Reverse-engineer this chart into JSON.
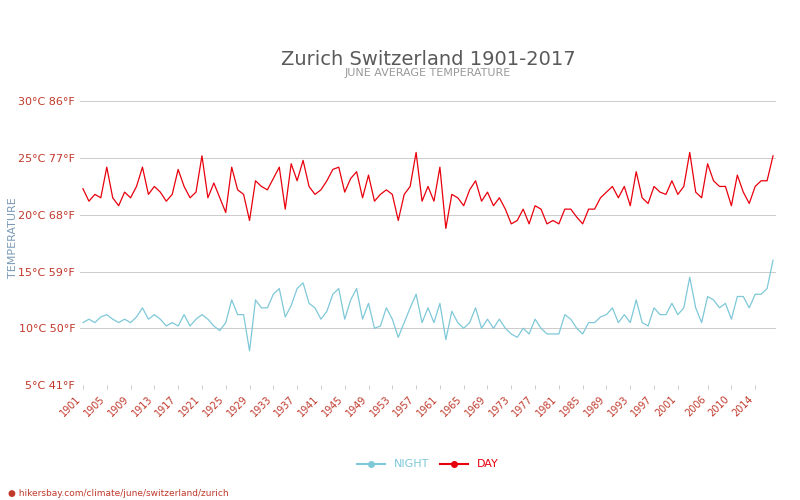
{
  "title": "Zurich Switzerland 1901-2017",
  "subtitle": "JUNE AVERAGE TEMPERATURE",
  "ylabel": "TEMPERATURE",
  "footer": "hikersbay.com/climate/june/switzerland/zurich",
  "years": [
    1901,
    1902,
    1903,
    1904,
    1905,
    1906,
    1907,
    1908,
    1909,
    1910,
    1911,
    1912,
    1913,
    1914,
    1915,
    1916,
    1917,
    1918,
    1919,
    1920,
    1921,
    1922,
    1923,
    1924,
    1925,
    1926,
    1927,
    1928,
    1929,
    1930,
    1931,
    1932,
    1933,
    1934,
    1935,
    1936,
    1937,
    1938,
    1939,
    1940,
    1941,
    1942,
    1943,
    1944,
    1945,
    1946,
    1947,
    1948,
    1949,
    1950,
    1951,
    1952,
    1953,
    1954,
    1955,
    1956,
    1957,
    1958,
    1959,
    1960,
    1961,
    1962,
    1963,
    1964,
    1965,
    1966,
    1967,
    1968,
    1969,
    1970,
    1971,
    1972,
    1973,
    1974,
    1975,
    1976,
    1977,
    1978,
    1979,
    1980,
    1981,
    1982,
    1983,
    1984,
    1985,
    1986,
    1987,
    1988,
    1989,
    1990,
    1991,
    1992,
    1993,
    1994,
    1995,
    1996,
    1997,
    1998,
    1999,
    2000,
    2001,
    2002,
    2003,
    2004,
    2005,
    2006,
    2007,
    2008,
    2009,
    2010,
    2011,
    2012,
    2013,
    2014,
    2015,
    2016,
    2017
  ],
  "day_temps": [
    22.3,
    21.2,
    21.8,
    21.5,
    24.2,
    21.5,
    20.8,
    22.0,
    21.5,
    22.5,
    24.2,
    21.8,
    22.5,
    22.0,
    21.2,
    21.8,
    24.0,
    22.5,
    21.5,
    22.0,
    25.2,
    21.5,
    22.8,
    21.5,
    20.2,
    24.2,
    22.2,
    21.8,
    19.5,
    23.0,
    22.5,
    22.2,
    23.2,
    24.2,
    20.5,
    24.5,
    23.0,
    24.8,
    22.5,
    21.8,
    22.2,
    23.0,
    24.0,
    24.2,
    22.0,
    23.2,
    23.8,
    21.5,
    23.5,
    21.2,
    21.8,
    22.2,
    21.8,
    19.5,
    21.8,
    22.5,
    25.5,
    21.2,
    22.5,
    21.2,
    24.2,
    18.8,
    21.8,
    21.5,
    20.8,
    22.2,
    23.0,
    21.2,
    22.0,
    20.8,
    21.5,
    20.5,
    19.2,
    19.5,
    20.5,
    19.2,
    20.8,
    20.5,
    19.2,
    19.5,
    19.2,
    20.5,
    20.5,
    19.8,
    19.2,
    20.5,
    20.5,
    21.5,
    22.0,
    22.5,
    21.5,
    22.5,
    20.8,
    23.8,
    21.5,
    21.0,
    22.5,
    22.0,
    21.8,
    23.0,
    21.8,
    22.5,
    25.5,
    22.0,
    21.5,
    24.5,
    23.0,
    22.5,
    22.5,
    20.8,
    23.5,
    22.0,
    21.0,
    22.5,
    23.0,
    23.0,
    25.2
  ],
  "night_temps": [
    10.5,
    10.8,
    10.5,
    11.0,
    11.2,
    10.8,
    10.5,
    10.8,
    10.5,
    11.0,
    11.8,
    10.8,
    11.2,
    10.8,
    10.2,
    10.5,
    10.2,
    11.2,
    10.2,
    10.8,
    11.2,
    10.8,
    10.2,
    9.8,
    10.5,
    12.5,
    11.2,
    11.2,
    8.0,
    12.5,
    11.8,
    11.8,
    13.0,
    13.5,
    11.0,
    12.0,
    13.5,
    14.0,
    12.2,
    11.8,
    10.8,
    11.5,
    13.0,
    13.5,
    10.8,
    12.5,
    13.5,
    10.8,
    12.2,
    10.0,
    10.2,
    11.8,
    10.8,
    9.2,
    10.5,
    11.8,
    13.0,
    10.5,
    11.8,
    10.5,
    12.2,
    9.0,
    11.5,
    10.5,
    10.0,
    10.5,
    11.8,
    10.0,
    10.8,
    10.0,
    10.8,
    10.0,
    9.5,
    9.2,
    10.0,
    9.5,
    10.8,
    10.0,
    9.5,
    9.5,
    9.5,
    11.2,
    10.8,
    10.0,
    9.5,
    10.5,
    10.5,
    11.0,
    11.2,
    11.8,
    10.5,
    11.2,
    10.5,
    12.5,
    10.5,
    10.2,
    11.8,
    11.2,
    11.2,
    12.2,
    11.2,
    11.8,
    14.5,
    11.8,
    10.5,
    12.8,
    12.5,
    11.8,
    12.2,
    10.8,
    12.8,
    12.8,
    11.8,
    13.0,
    13.0,
    13.5,
    16.0
  ],
  "xtick_years": [
    1901,
    1905,
    1909,
    1913,
    1917,
    1921,
    1925,
    1929,
    1933,
    1937,
    1941,
    1945,
    1949,
    1953,
    1957,
    1961,
    1965,
    1969,
    1973,
    1977,
    1981,
    1985,
    1989,
    1993,
    1997,
    2001,
    2006,
    2010,
    2014
  ],
  "yticks_c": [
    5,
    10,
    15,
    20,
    25,
    30
  ],
  "yticks_f": [
    41,
    50,
    59,
    68,
    77,
    86
  ],
  "ylim": [
    5,
    31
  ],
  "xlim": [
    1900.5,
    2017.5
  ],
  "title_color": "#5a5a5a",
  "subtitle_color": "#999999",
  "day_color": "#e8000d",
  "night_color": "#7ec8d8",
  "ylabel_color": "#7a9ab5",
  "tick_color": "#c0392b",
  "grid_color": "#cccccc",
  "bg_color": "#ffffff",
  "footer_color": "#c0392b",
  "legend_day_color": "#e8000d",
  "legend_night_color": "#7ec8d8",
  "title_fontsize": 14,
  "subtitle_fontsize": 8,
  "ytick_fontsize": 8,
  "xtick_fontsize": 7,
  "ylabel_fontsize": 8,
  "legend_fontsize": 8,
  "footer_fontsize": 6.5
}
